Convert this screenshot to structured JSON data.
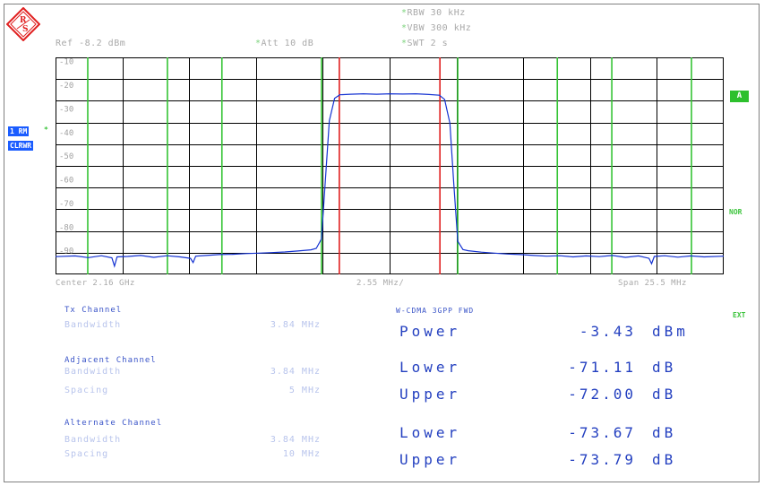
{
  "header": {
    "rbw": "RBW 30 kHz",
    "vbw": "VBW 300 kHz",
    "swt": "SWT 2 s",
    "ref": "Ref -8.2 dBm",
    "att": "Att  10 dB",
    "star": "*"
  },
  "side": {
    "trace_label": "1 RM",
    "clrwr_label": "CLRWR",
    "a_label": "A",
    "nor_label": "NOR",
    "ext_label": "EXT"
  },
  "chart_data": {
    "type": "line",
    "ylabels": [
      "-10",
      "-20",
      "-30",
      "-40",
      "-50",
      "-60",
      "-70",
      "-80",
      "-90"
    ],
    "ylim": [
      -100,
      -8.2
    ],
    "xlim_MHz": [
      -12.75,
      12.75
    ],
    "grid": true,
    "series": [
      {
        "color": "#1432d2",
        "points": [
          [
            -12.75,
            -92.5
          ],
          [
            -12.0,
            -92.2
          ],
          [
            -11.5,
            -92.9
          ],
          [
            -11.0,
            -92.1
          ],
          [
            -10.6,
            -93.0
          ],
          [
            -10.5,
            -96.5
          ],
          [
            -10.4,
            -92.6
          ],
          [
            -10.0,
            -92.4
          ],
          [
            -9.5,
            -92.0
          ],
          [
            -9.0,
            -92.8
          ],
          [
            -8.5,
            -92.1
          ],
          [
            -8.0,
            -92.6
          ],
          [
            -7.6,
            -93.2
          ],
          [
            -7.5,
            -95.0
          ],
          [
            -7.4,
            -92.3
          ],
          [
            -7.0,
            -92.0
          ],
          [
            -6.5,
            -91.6
          ],
          [
            -6.0,
            -91.5
          ],
          [
            -5.5,
            -91.2
          ],
          [
            -5.0,
            -91.0
          ],
          [
            -4.5,
            -90.8
          ],
          [
            -4.0,
            -90.5
          ],
          [
            -3.5,
            -90.1
          ],
          [
            -3.0,
            -89.6
          ],
          [
            -2.8,
            -89.0
          ],
          [
            -2.6,
            -85.0
          ],
          [
            -2.45,
            -60.0
          ],
          [
            -2.3,
            -35.0
          ],
          [
            -2.1,
            -25.5
          ],
          [
            -1.9,
            -24.0
          ],
          [
            -1.5,
            -23.8
          ],
          [
            -1.0,
            -23.6
          ],
          [
            -0.5,
            -23.8
          ],
          [
            0.0,
            -23.6
          ],
          [
            0.5,
            -23.7
          ],
          [
            1.0,
            -23.6
          ],
          [
            1.5,
            -23.9
          ],
          [
            1.9,
            -24.2
          ],
          [
            2.1,
            -26.0
          ],
          [
            2.3,
            -36.0
          ],
          [
            2.45,
            -62.0
          ],
          [
            2.6,
            -86.0
          ],
          [
            2.8,
            -89.5
          ],
          [
            3.0,
            -90.0
          ],
          [
            3.5,
            -90.6
          ],
          [
            4.0,
            -91.0
          ],
          [
            4.5,
            -91.4
          ],
          [
            5.0,
            -91.6
          ],
          [
            5.5,
            -92.0
          ],
          [
            6.0,
            -92.3
          ],
          [
            6.5,
            -92.1
          ],
          [
            7.0,
            -92.6
          ],
          [
            7.5,
            -92.2
          ],
          [
            8.0,
            -92.5
          ],
          [
            8.5,
            -92.0
          ],
          [
            9.0,
            -92.8
          ],
          [
            9.5,
            -92.2
          ],
          [
            9.9,
            -93.2
          ],
          [
            10.0,
            -95.5
          ],
          [
            10.1,
            -92.4
          ],
          [
            10.5,
            -92.1
          ],
          [
            11.0,
            -92.7
          ],
          [
            11.5,
            -92.2
          ],
          [
            12.0,
            -92.6
          ],
          [
            12.75,
            -92.3
          ]
        ]
      }
    ],
    "red_lines_MHz": [
      -1.92,
      1.92
    ],
    "green_lines_MHz": [
      -11.52,
      -8.48,
      -6.4,
      -2.6,
      2.6,
      6.4,
      8.48,
      11.52
    ]
  },
  "footer": {
    "center": "Center 2.16 GHz",
    "div": "2.55 MHz/",
    "span": "Span 25.5 MHz"
  },
  "tx": {
    "title": "Tx Channel",
    "bw_label": "Bandwidth",
    "bw_value": "3.84 MHz"
  },
  "adjacent": {
    "title": "Adjacent Channel",
    "bw_label": "Bandwidth",
    "bw_value": "3.84 MHz",
    "sp_label": "Spacing",
    "sp_value": "5 MHz"
  },
  "alternate": {
    "title": "Alternate Channel",
    "bw_label": "Bandwidth",
    "bw_value": "3.84 MHz",
    "sp_label": "Spacing",
    "sp_value": "10 MHz"
  },
  "measurement": {
    "standard": "W-CDMA 3GPP FWD",
    "rows": [
      {
        "label": "Power",
        "value": "-3.43",
        "unit": "dBm"
      },
      {
        "label": "Lower",
        "value": "-71.11",
        "unit": "dB"
      },
      {
        "label": "Upper",
        "value": "-72.00",
        "unit": "dB"
      },
      {
        "label": "Lower",
        "value": "-73.67",
        "unit": "dB"
      },
      {
        "label": "Upper",
        "value": "-73.79",
        "unit": "dB"
      }
    ]
  }
}
